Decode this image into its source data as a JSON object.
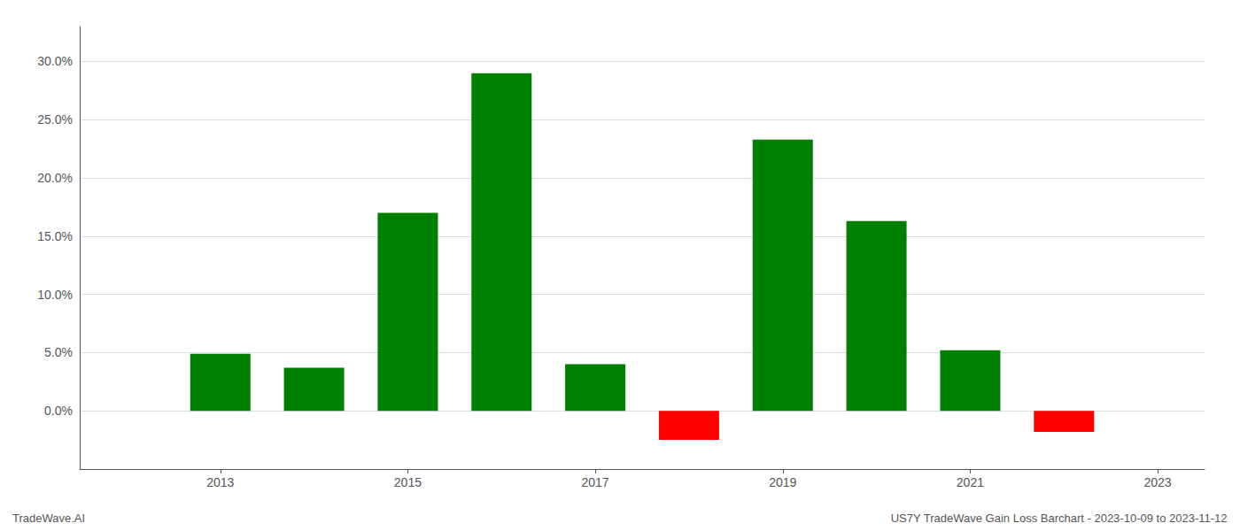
{
  "chart_data": {
    "type": "bar",
    "x": [
      2013,
      2014,
      2015,
      2016,
      2017,
      2018,
      2019,
      2020,
      2021,
      2022
    ],
    "values": [
      0.049,
      0.037,
      0.17,
      0.29,
      0.04,
      -0.025,
      0.233,
      0.163,
      0.052,
      -0.018
    ],
    "colors": [
      "#008000",
      "#008000",
      "#008000",
      "#008000",
      "#008000",
      "#ff0000",
      "#008000",
      "#008000",
      "#008000",
      "#ff0000"
    ],
    "xlim": [
      2011.5,
      2023.5
    ],
    "xticks": [
      2013,
      2015,
      2017,
      2019,
      2021,
      2023
    ],
    "ylim": [
      -0.05,
      0.33
    ],
    "yticks": [
      {
        "value": 0.0,
        "label": "0.0%"
      },
      {
        "value": 0.05,
        "label": "5.0%"
      },
      {
        "value": 0.1,
        "label": "10.0%"
      },
      {
        "value": 0.15,
        "label": "15.0%"
      },
      {
        "value": 0.2,
        "label": "20.0%"
      },
      {
        "value": 0.25,
        "label": "25.0%"
      },
      {
        "value": 0.3,
        "label": "30.0%"
      }
    ],
    "grid": true,
    "annotations": [
      "TradeWave.AI",
      "US7Y TradeWave Gain Loss Barchart - 2023-10-09 to 2023-11-12"
    ]
  }
}
